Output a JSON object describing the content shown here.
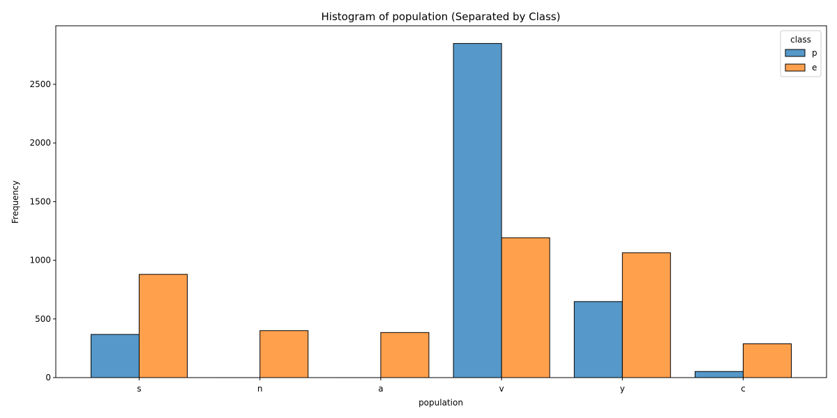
{
  "chart_data": {
    "type": "bar",
    "title": "Histogram of population (Separated by Class)",
    "xlabel": "population",
    "ylabel": "Frequency",
    "categories": [
      "s",
      "n",
      "a",
      "v",
      "y",
      "c"
    ],
    "ylim": [
      0,
      3000
    ],
    "yticks": [
      0,
      500,
      1000,
      1500,
      2000,
      2500
    ],
    "legend": {
      "title": "class",
      "position": "top-right"
    },
    "series": [
      {
        "name": "p",
        "color": "#5598c9",
        "values": [
          368,
          0,
          0,
          2848,
          648,
          52
        ]
      },
      {
        "name": "e",
        "color": "#ffa04d",
        "values": [
          880,
          400,
          384,
          1192,
          1064,
          288
        ]
      }
    ],
    "grid": false
  }
}
